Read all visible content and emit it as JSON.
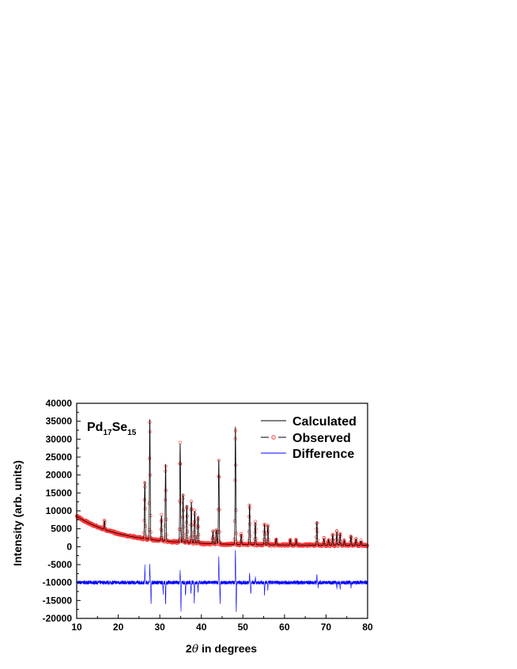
{
  "chart_data": {
    "type": "line",
    "annotation": {
      "main": "Pd",
      "sub1": "17",
      "mid": "Se",
      "sub2": "15"
    },
    "xlabel": {
      "pre": "2",
      "theta": "θ",
      "post": " in degrees"
    },
    "ylabel": "Intensity (arb. units)",
    "xlim": [
      10,
      80
    ],
    "ylim": [
      -20000,
      40000
    ],
    "xticks": [
      "10",
      "20",
      "30",
      "40",
      "50",
      "60",
      "70",
      "80"
    ],
    "yticks": [
      "-20000",
      "-15000",
      "-10000",
      "-5000",
      "0",
      "5000",
      "10000",
      "15000",
      "20000",
      "25000",
      "30000",
      "35000",
      "40000"
    ],
    "grid": false,
    "legend_position": "top-right",
    "series": [
      {
        "name": "Calculated",
        "color": "#000000",
        "style": "line"
      },
      {
        "name": "Observed",
        "color": "#ff3333",
        "style": "open-circle-markers"
      },
      {
        "name": "Difference",
        "color": "#0000ff",
        "style": "line"
      }
    ],
    "background": {
      "start": 8500,
      "decay": 11,
      "floor": 400
    },
    "difference_baseline": -10000,
    "peaks": [
      {
        "x": 16.7,
        "y": 2500
      },
      {
        "x": 26.4,
        "y": 16000
      },
      {
        "x": 27.6,
        "y": 33500
      },
      {
        "x": 30.4,
        "y": 7000
      },
      {
        "x": 31.4,
        "y": 21500
      },
      {
        "x": 34.9,
        "y": 27500
      },
      {
        "x": 35.6,
        "y": 13500
      },
      {
        "x": 36.5,
        "y": 10500
      },
      {
        "x": 37.6,
        "y": 11500
      },
      {
        "x": 38.4,
        "y": 9000
      },
      {
        "x": 39.2,
        "y": 7500
      },
      {
        "x": 42.8,
        "y": 3500
      },
      {
        "x": 43.6,
        "y": 4000
      },
      {
        "x": 44.2,
        "y": 23500
      },
      {
        "x": 48.2,
        "y": 32800
      },
      {
        "x": 49.6,
        "y": 2800
      },
      {
        "x": 51.6,
        "y": 11200
      },
      {
        "x": 53.0,
        "y": 6300
      },
      {
        "x": 55.2,
        "y": 5800
      },
      {
        "x": 56.0,
        "y": 5600
      },
      {
        "x": 58.0,
        "y": 1800
      },
      {
        "x": 61.4,
        "y": 1600
      },
      {
        "x": 62.8,
        "y": 1600
      },
      {
        "x": 67.8,
        "y": 6600
      },
      {
        "x": 69.5,
        "y": 1800
      },
      {
        "x": 70.6,
        "y": 1600
      },
      {
        "x": 71.6,
        "y": 3000
      },
      {
        "x": 72.6,
        "y": 3800
      },
      {
        "x": 73.4,
        "y": 3200
      },
      {
        "x": 74.4,
        "y": 1500
      },
      {
        "x": 76.0,
        "y": 2600
      },
      {
        "x": 77.2,
        "y": 1800
      },
      {
        "x": 78.4,
        "y": 1200
      }
    ],
    "difference_spikes": [
      {
        "x": 26.4,
        "y": -5500
      },
      {
        "x": 27.6,
        "y": -5000
      },
      {
        "x": 27.9,
        "y": -16000
      },
      {
        "x": 30.8,
        "y": -13000
      },
      {
        "x": 31.4,
        "y": -16500
      },
      {
        "x": 34.9,
        "y": -7000
      },
      {
        "x": 35.1,
        "y": -18000
      },
      {
        "x": 36.2,
        "y": -14000
      },
      {
        "x": 37.5,
        "y": -13500
      },
      {
        "x": 38.3,
        "y": -15500
      },
      {
        "x": 39.2,
        "y": -12500
      },
      {
        "x": 44.2,
        "y": -3000
      },
      {
        "x": 44.5,
        "y": -16000
      },
      {
        "x": 48.2,
        "y": -500
      },
      {
        "x": 48.4,
        "y": -18500
      },
      {
        "x": 51.6,
        "y": -7500
      },
      {
        "x": 51.9,
        "y": -13500
      },
      {
        "x": 53.0,
        "y": -8500
      },
      {
        "x": 55.2,
        "y": -13500
      },
      {
        "x": 56.0,
        "y": -12000
      },
      {
        "x": 67.8,
        "y": -7500
      },
      {
        "x": 68.1,
        "y": -11500
      },
      {
        "x": 72.6,
        "y": -11500
      },
      {
        "x": 73.4,
        "y": -12000
      },
      {
        "x": 76.0,
        "y": -11500
      }
    ]
  }
}
